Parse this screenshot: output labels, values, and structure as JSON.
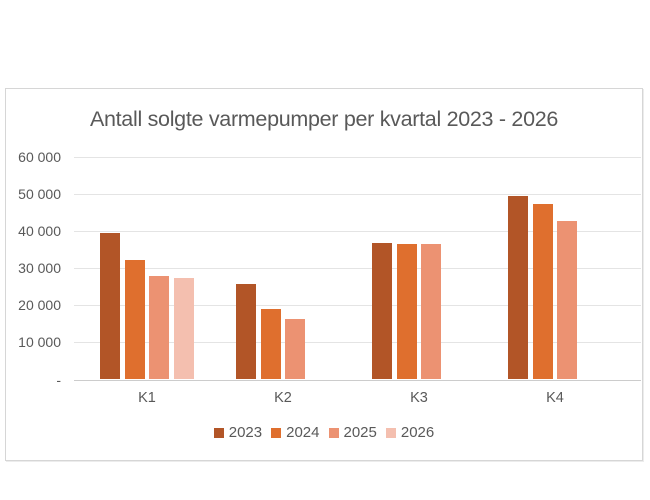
{
  "page": {
    "background": "#ffffff"
  },
  "chart": {
    "frame_border_color": "#d6d6d6",
    "background_color": "#ffffff",
    "text_color": "#595959",
    "gridline_color": "#e4e4e4",
    "axis_line_color": "#cccccc"
  },
  "chart_data": {
    "type": "bar",
    "title": "Antall solgte varmepumper per kvartal 2023 - 2026",
    "categories": [
      "K1",
      "K2",
      "K3",
      "K4"
    ],
    "series": [
      {
        "name": "2023",
        "color": "#b25527",
        "values": [
          39500,
          25700,
          36900,
          49400
        ]
      },
      {
        "name": "2024",
        "color": "#df6f2e",
        "values": [
          32200,
          19000,
          36400,
          47300
        ]
      },
      {
        "name": "2025",
        "color": "#ec9272",
        "values": [
          27800,
          16300,
          36400,
          42700
        ]
      },
      {
        "name": "2026",
        "color": "#f4bfaf",
        "values": [
          27300,
          null,
          null,
          null
        ]
      }
    ],
    "xlabel": "",
    "ylabel": "",
    "ylim": [
      0,
      60000
    ],
    "ytick_step": 10000,
    "ytick_labels": [
      "-",
      "10 000",
      "20 000",
      "30 000",
      "40 000",
      "50 000",
      "60 000"
    ],
    "grid": "horizontal",
    "legend_position": "bottom",
    "legend_labels": [
      "2023",
      "2024",
      "2025",
      "2026"
    ]
  }
}
